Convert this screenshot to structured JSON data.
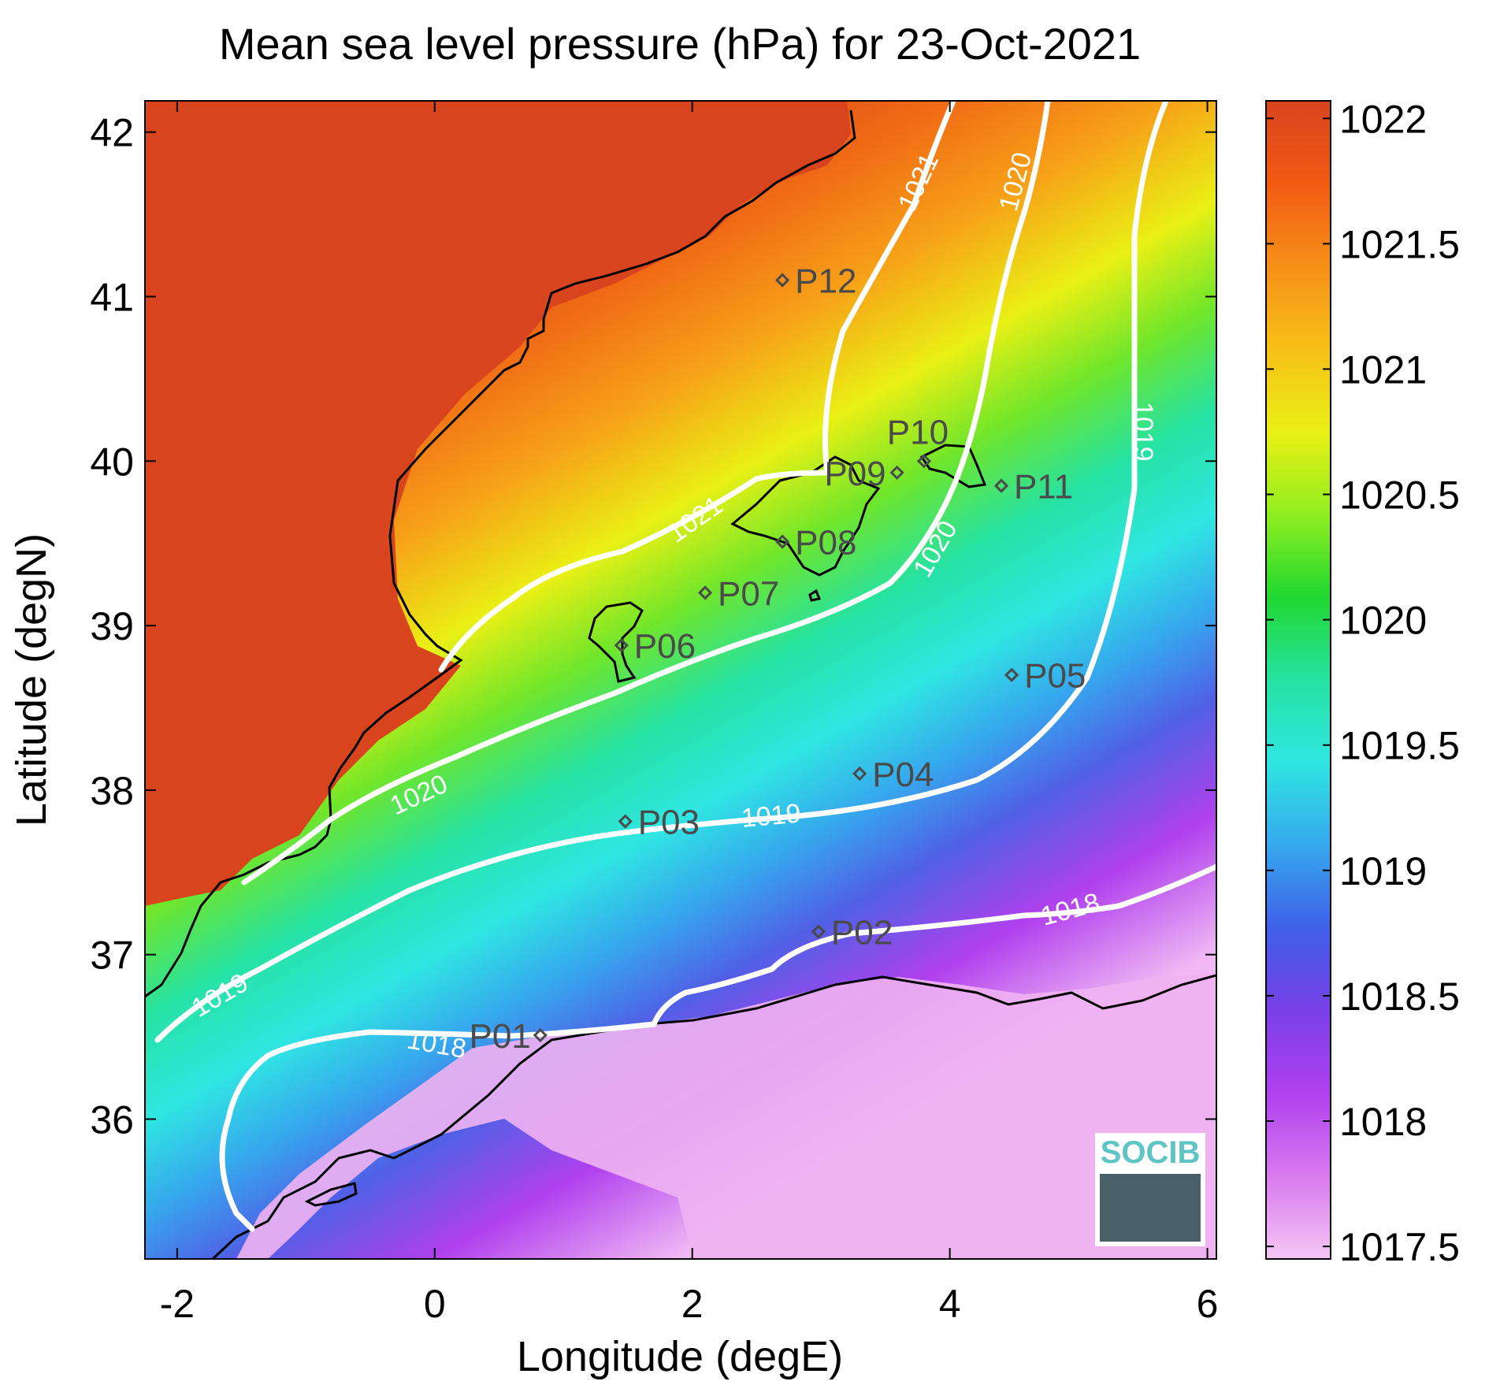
{
  "title": "Mean sea level pressure (hPa) for 23-Oct-2021",
  "xlabel": "Longitude (degE)",
  "ylabel": "Latitude (degN)",
  "x_axis": {
    "range": [
      -2.25,
      6.07
    ],
    "ticks": [
      -2,
      0,
      2,
      4,
      6
    ],
    "tick_labels": [
      "-2",
      "0",
      "2",
      "4",
      "6"
    ]
  },
  "y_axis": {
    "range": [
      35.15,
      42.19
    ],
    "ticks": [
      36,
      37,
      38,
      39,
      40,
      41,
      42
    ],
    "tick_labels": [
      "36",
      "37",
      "38",
      "39",
      "40",
      "41",
      "42"
    ]
  },
  "colorbar": {
    "range": [
      1017.45,
      1022.07
    ],
    "ticks": [
      1017.5,
      1018,
      1018.5,
      1019,
      1019.5,
      1020,
      1020.5,
      1021,
      1021.5,
      1022
    ],
    "tick_labels": [
      "1017.5",
      "1018",
      "1018.5",
      "1019",
      "1019.5",
      "1020",
      "1020.5",
      "1021",
      "1021.5",
      "1022"
    ],
    "colors": [
      "#f5c6f3",
      "#d87af0",
      "#b040ee",
      "#7a40e8",
      "#4060e8",
      "#36a8ee",
      "#30e6e2",
      "#26e2a2",
      "#20d830",
      "#90ee20",
      "#eaf015",
      "#f7c018",
      "#f69018",
      "#f25a12",
      "#d8441e"
    ]
  },
  "contour_labels": [
    "1021",
    "1020",
    "1019",
    "1021",
    "1020",
    "1020",
    "1019",
    "1019",
    "1018",
    "1018"
  ],
  "stations": [
    {
      "name": "P01",
      "lon": 0.82,
      "lat": 36.51
    },
    {
      "name": "P02",
      "lon": 2.98,
      "lat": 37.14
    },
    {
      "name": "P03",
      "lon": 1.48,
      "lat": 37.81
    },
    {
      "name": "P04",
      "lon": 3.3,
      "lat": 38.1
    },
    {
      "name": "P05",
      "lon": 4.48,
      "lat": 38.7
    },
    {
      "name": "P06",
      "lon": 1.45,
      "lat": 38.88
    },
    {
      "name": "P07",
      "lon": 2.1,
      "lat": 39.2
    },
    {
      "name": "P08",
      "lon": 2.7,
      "lat": 39.51
    },
    {
      "name": "P09",
      "lon": 3.59,
      "lat": 39.93
    },
    {
      "name": "P10",
      "lon": 3.8,
      "lat": 40.0
    },
    {
      "name": "P11",
      "lon": 4.4,
      "lat": 39.85
    },
    {
      "name": "P12",
      "lon": 2.7,
      "lat": 41.1
    }
  ],
  "logo": {
    "text": "SOCIB",
    "color": "#5fc4c4"
  }
}
